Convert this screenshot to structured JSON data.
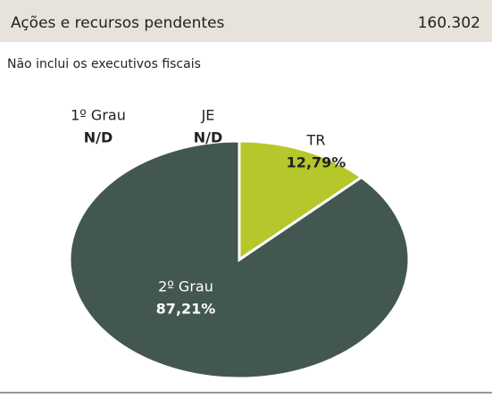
{
  "chart_data": {
    "type": "pie",
    "title": "Ações e recursos pendentes",
    "total": "160.302",
    "subtitle": "Não inclui os executivos fiscais",
    "categories": [
      "2º Grau",
      "TR"
    ],
    "values": [
      87.21,
      12.79
    ],
    "value_labels": [
      "87,21%",
      "12,79%"
    ],
    "colors": [
      "#42574f",
      "#b5c72a"
    ],
    "unavailable": [
      {
        "name": "1º Grau",
        "label": "N/D"
      },
      {
        "name": "JE",
        "label": "N/D"
      }
    ]
  }
}
